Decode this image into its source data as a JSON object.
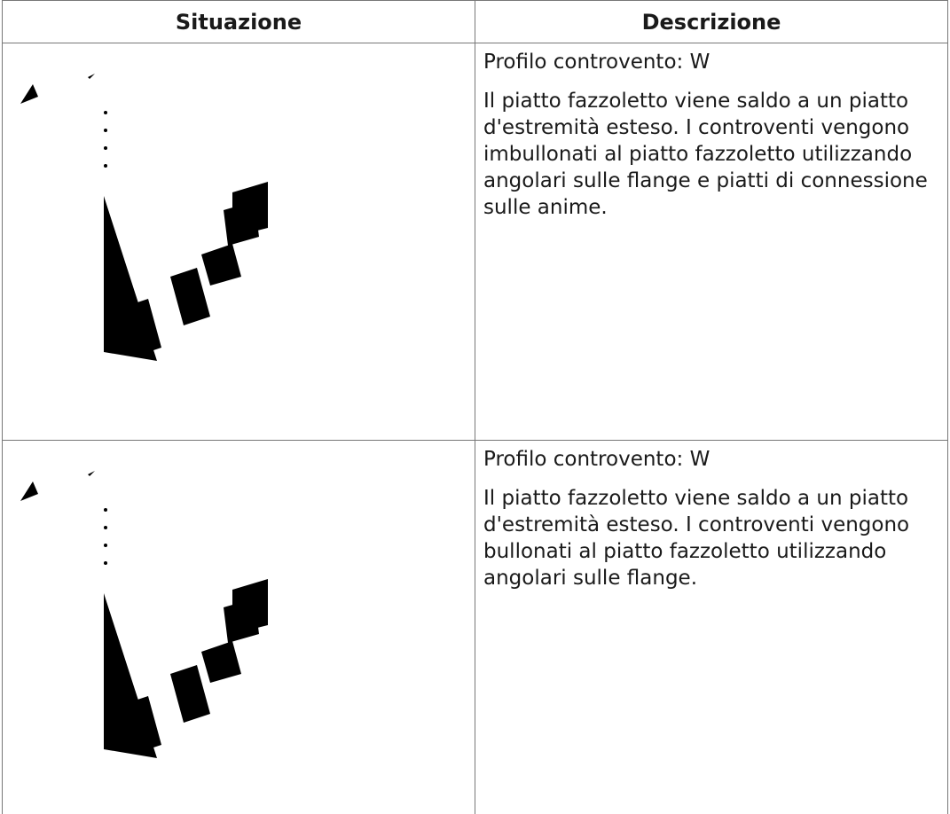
{
  "table": {
    "header": [
      "Situazione",
      "Descrizione"
    ],
    "rows": [
      {
        "profile": "Profilo controvento: W",
        "description": "Il piatto fazzoletto viene saldo a un piatto d'estremità esteso. I controventi vengono imbullonati al piatto fazzoletto utilizzando angolari sulle flange e piatti di connessione sulle anime."
      },
      {
        "profile": "Profilo controvento: W",
        "description": "Il piatto fazzoletto viene saldo a un piatto d'estremità esteso. I controventi vengono bullonati al piatto fazzoletto utilizzando angolari sulle flange."
      }
    ]
  }
}
